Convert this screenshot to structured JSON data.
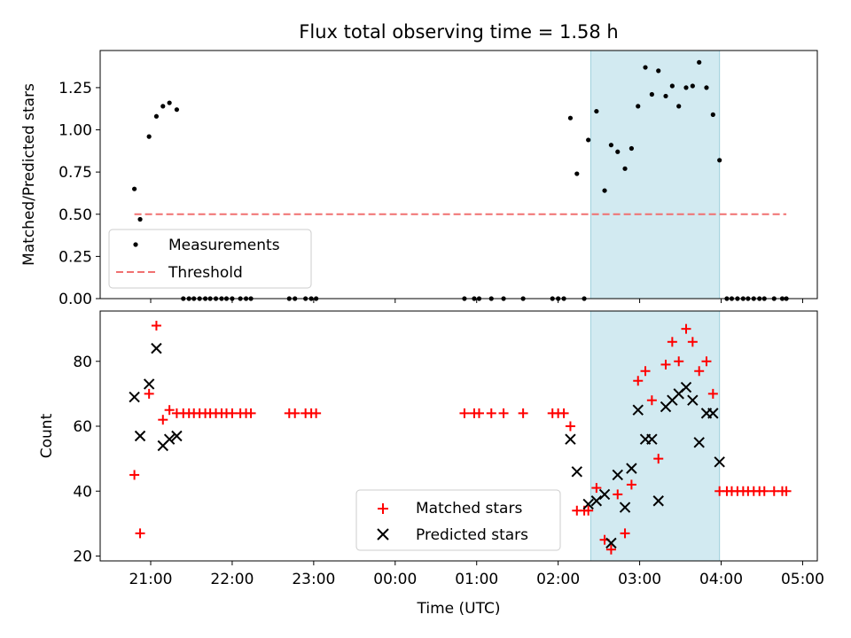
{
  "chart_data": [
    {
      "type": "scatter",
      "title": "Flux total observing time = 1.58 h",
      "xlabel": "",
      "ylabel": "Matched/Predicted stars",
      "x_unit": "hours relative to 00:00 UTC",
      "xlim": [
        -3.62,
        5.18
      ],
      "ylim": [
        0,
        1.47
      ],
      "yticks": [
        0.0,
        0.25,
        0.5,
        0.75,
        1.0,
        1.25
      ],
      "ytick_labels": [
        "0.00",
        "0.25",
        "0.50",
        "0.75",
        "1.00",
        "1.25"
      ],
      "shaded_interval": [
        2.4,
        3.98
      ],
      "legend_position": "lower-left",
      "threshold": {
        "name": "Threshold",
        "value": 0.5,
        "x_range": [
          -3.2,
          4.8
        ],
        "color": "#f07070"
      },
      "series": [
        {
          "name": "Measurements",
          "color": "#000000",
          "points": [
            [
              -3.2,
              0.65
            ],
            [
              -3.13,
              0.47
            ],
            [
              -3.02,
              0.96
            ],
            [
              -2.93,
              1.08
            ],
            [
              -2.85,
              1.14
            ],
            [
              -2.77,
              1.16
            ],
            [
              -2.68,
              1.12
            ],
            [
              -2.6,
              0.0
            ],
            [
              -2.53,
              0.0
            ],
            [
              -2.47,
              0.0
            ],
            [
              -2.4,
              0.0
            ],
            [
              -2.33,
              0.0
            ],
            [
              -2.27,
              0.0
            ],
            [
              -2.2,
              0.0
            ],
            [
              -2.13,
              0.0
            ],
            [
              -2.07,
              0.0
            ],
            [
              -2.0,
              0.0
            ],
            [
              -1.9,
              0.0
            ],
            [
              -1.83,
              0.0
            ],
            [
              -1.77,
              0.0
            ],
            [
              -1.3,
              0.0
            ],
            [
              -1.23,
              0.0
            ],
            [
              -1.1,
              0.0
            ],
            [
              -1.03,
              0.0
            ],
            [
              -0.97,
              0.0
            ],
            [
              0.85,
              0.0
            ],
            [
              0.97,
              0.0
            ],
            [
              1.03,
              0.0
            ],
            [
              1.18,
              0.0
            ],
            [
              1.33,
              0.0
            ],
            [
              1.57,
              0.0
            ],
            [
              1.93,
              0.0
            ],
            [
              2.0,
              0.0
            ],
            [
              2.07,
              0.0
            ],
            [
              2.15,
              1.07
            ],
            [
              2.23,
              0.74
            ],
            [
              2.32,
              0.0
            ],
            [
              2.37,
              0.94
            ],
            [
              2.47,
              1.11
            ],
            [
              2.57,
              0.64
            ],
            [
              2.65,
              0.91
            ],
            [
              2.73,
              0.87
            ],
            [
              2.82,
              0.77
            ],
            [
              2.9,
              0.89
            ],
            [
              2.98,
              1.14
            ],
            [
              3.07,
              1.37
            ],
            [
              3.15,
              1.21
            ],
            [
              3.23,
              1.35
            ],
            [
              3.32,
              1.2
            ],
            [
              3.4,
              1.26
            ],
            [
              3.48,
              1.14
            ],
            [
              3.57,
              1.25
            ],
            [
              3.65,
              1.26
            ],
            [
              3.73,
              1.4
            ],
            [
              3.82,
              1.25
            ],
            [
              3.9,
              1.09
            ],
            [
              3.98,
              0.82
            ],
            [
              4.07,
              0.0
            ],
            [
              4.13,
              0.0
            ],
            [
              4.2,
              0.0
            ],
            [
              4.27,
              0.0
            ],
            [
              4.33,
              0.0
            ],
            [
              4.4,
              0.0
            ],
            [
              4.47,
              0.0
            ],
            [
              4.53,
              0.0
            ],
            [
              4.65,
              0.0
            ],
            [
              4.75,
              0.0
            ],
            [
              4.8,
              0.0
            ]
          ]
        }
      ]
    },
    {
      "type": "scatter",
      "title": "",
      "xlabel": "Time (UTC)",
      "ylabel": "Count",
      "x_unit": "hours relative to 00:00 UTC",
      "xlim": [
        -3.62,
        5.18
      ],
      "ylim": [
        18.5,
        95.5
      ],
      "xticks": [
        -3,
        -2,
        -1,
        0,
        1,
        2,
        3,
        4,
        5
      ],
      "xtick_labels": [
        "21:00",
        "22:00",
        "23:00",
        "00:00",
        "01:00",
        "02:00",
        "03:00",
        "04:00",
        "05:00"
      ],
      "yticks": [
        20,
        40,
        60,
        80
      ],
      "ytick_labels": [
        "20",
        "40",
        "60",
        "80"
      ],
      "shaded_interval": [
        2.4,
        3.98
      ],
      "legend_position": "lower-center",
      "series": [
        {
          "name": "Matched stars",
          "marker": "plus",
          "color": "#ff0000",
          "points": [
            [
              -3.2,
              45
            ],
            [
              -3.13,
              27
            ],
            [
              -3.02,
              70
            ],
            [
              -2.93,
              91
            ],
            [
              -2.85,
              62
            ],
            [
              -2.77,
              65
            ],
            [
              -2.68,
              64
            ],
            [
              -2.6,
              64
            ],
            [
              -2.53,
              64
            ],
            [
              -2.47,
              64
            ],
            [
              -2.4,
              64
            ],
            [
              -2.33,
              64
            ],
            [
              -2.27,
              64
            ],
            [
              -2.2,
              64
            ],
            [
              -2.13,
              64
            ],
            [
              -2.07,
              64
            ],
            [
              -2.0,
              64
            ],
            [
              -1.9,
              64
            ],
            [
              -1.83,
              64
            ],
            [
              -1.77,
              64
            ],
            [
              -1.3,
              64
            ],
            [
              -1.23,
              64
            ],
            [
              -1.1,
              64
            ],
            [
              -1.03,
              64
            ],
            [
              -0.97,
              64
            ],
            [
              0.85,
              64
            ],
            [
              0.97,
              64
            ],
            [
              1.03,
              64
            ],
            [
              1.18,
              64
            ],
            [
              1.33,
              64
            ],
            [
              1.57,
              64
            ],
            [
              1.93,
              64
            ],
            [
              2.0,
              64
            ],
            [
              2.07,
              64
            ],
            [
              2.15,
              60
            ],
            [
              2.23,
              34
            ],
            [
              2.32,
              34
            ],
            [
              2.37,
              34
            ],
            [
              2.47,
              41
            ],
            [
              2.57,
              25
            ],
            [
              2.65,
              22
            ],
            [
              2.73,
              39
            ],
            [
              2.82,
              27
            ],
            [
              2.9,
              42
            ],
            [
              2.98,
              74
            ],
            [
              3.07,
              77
            ],
            [
              3.15,
              68
            ],
            [
              3.23,
              50
            ],
            [
              3.32,
              79
            ],
            [
              3.4,
              86
            ],
            [
              3.48,
              80
            ],
            [
              3.57,
              90
            ],
            [
              3.65,
              86
            ],
            [
              3.73,
              77
            ],
            [
              3.82,
              80
            ],
            [
              3.9,
              70
            ],
            [
              3.98,
              40
            ],
            [
              4.07,
              40
            ],
            [
              4.13,
              40
            ],
            [
              4.2,
              40
            ],
            [
              4.27,
              40
            ],
            [
              4.33,
              40
            ],
            [
              4.4,
              40
            ],
            [
              4.47,
              40
            ],
            [
              4.53,
              40
            ],
            [
              4.65,
              40
            ],
            [
              4.75,
              40
            ],
            [
              4.8,
              40
            ]
          ]
        },
        {
          "name": "Predicted stars",
          "marker": "x",
          "color": "#000000",
          "points": [
            [
              -3.2,
              69
            ],
            [
              -3.13,
              57
            ],
            [
              -3.02,
              73
            ],
            [
              -2.93,
              84
            ],
            [
              -2.85,
              54
            ],
            [
              -2.77,
              56
            ],
            [
              -2.68,
              57
            ],
            [
              2.15,
              56
            ],
            [
              2.23,
              46
            ],
            [
              2.37,
              36
            ],
            [
              2.47,
              37
            ],
            [
              2.57,
              39
            ],
            [
              2.65,
              24
            ],
            [
              2.73,
              45
            ],
            [
              2.82,
              35
            ],
            [
              2.9,
              47
            ],
            [
              2.98,
              65
            ],
            [
              3.07,
              56
            ],
            [
              3.15,
              56
            ],
            [
              3.23,
              37
            ],
            [
              3.32,
              66
            ],
            [
              3.4,
              68
            ],
            [
              3.48,
              70
            ],
            [
              3.57,
              72
            ],
            [
              3.65,
              68
            ],
            [
              3.73,
              55
            ],
            [
              3.82,
              64
            ],
            [
              3.9,
              64
            ],
            [
              3.98,
              49
            ]
          ]
        }
      ]
    }
  ]
}
